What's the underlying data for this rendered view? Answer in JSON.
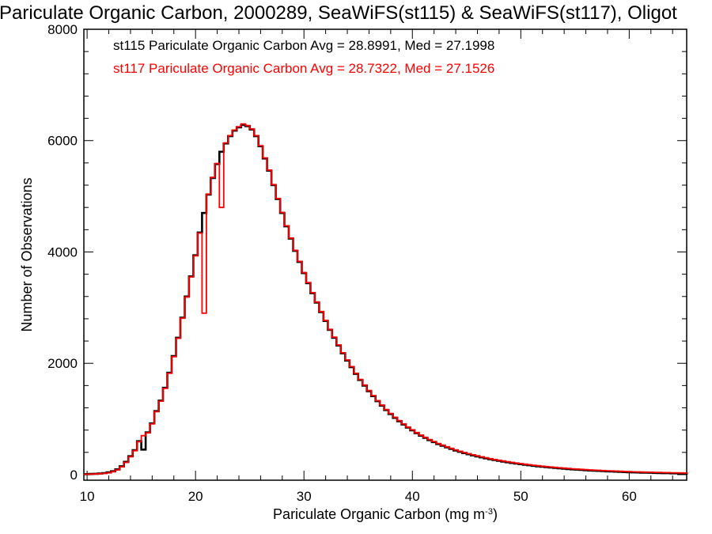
{
  "title": "Pariculate Organic Carbon, 2000289, SeaWiFS(st115) & SeaWiFS(st117), Oligot",
  "chart_data": {
    "type": "histogram",
    "xlabel": "Pariculate Organic Carbon (mg m",
    "xlabel_sup": "-3",
    "xlabel_close": ")",
    "ylabel": "Number of Observations",
    "xlim": [
      9.7,
      65.3
    ],
    "ylim": [
      -100,
      8000
    ],
    "xticks": [
      "10",
      "20",
      "30",
      "40",
      "50",
      "60"
    ],
    "yticks": [
      "0",
      "2000",
      "4000",
      "6000",
      "8000"
    ],
    "legend": [
      {
        "text": "st115 Pariculate Organic Carbon Avg = 28.8991, Med = 27.1998",
        "color": "#000000"
      },
      {
        "text": "st117 Pariculate Organic Carbon Avg = 28.7322, Med = 27.1526",
        "color": "#ff0000"
      }
    ],
    "bin_start": 9.8,
    "bin_width": 0.4,
    "series": [
      {
        "color": "#000000",
        "values": [
          10,
          12,
          15,
          20,
          28,
          40,
          60,
          95,
          150,
          230,
          330,
          440,
          600,
          450,
          760,
          920,
          1140,
          1330,
          1560,
          1830,
          2130,
          2460,
          2820,
          3200,
          3560,
          3940,
          4350,
          4700,
          5030,
          5330,
          5580,
          5800,
          5950,
          6080,
          6180,
          6240,
          6280,
          6260,
          6200,
          6080,
          5900,
          5680,
          5460,
          5200,
          4950,
          4700,
          4460,
          4240,
          4020,
          3820,
          3620,
          3440,
          3260,
          3090,
          2920,
          2760,
          2600,
          2460,
          2320,
          2180,
          2050,
          1930,
          1810,
          1700,
          1600,
          1500,
          1410,
          1320,
          1240,
          1160,
          1090,
          1020,
          960,
          900,
          845,
          795,
          745,
          700,
          660,
          620,
          585,
          550,
          520,
          490,
          462,
          435,
          410,
          388,
          366,
          346,
          327,
          310,
          293,
          277,
          262,
          248,
          235,
          222,
          210,
          199,
          188,
          178,
          168,
          159,
          150,
          142,
          134,
          127,
          120,
          113,
          107,
          101,
          95,
          90,
          85,
          80,
          75,
          71,
          67,
          63,
          59,
          56,
          53,
          50,
          47,
          44,
          41,
          39,
          37,
          35,
          33,
          31,
          29,
          27,
          26,
          24,
          23,
          21,
          20,
          19
        ]
      },
      {
        "color": "#ff0000",
        "values": [
          8,
          10,
          12,
          16,
          22,
          32,
          52,
          85,
          140,
          220,
          320,
          430,
          590,
          700,
          750,
          910,
          1130,
          1320,
          1550,
          1820,
          2120,
          2450,
          2810,
          3190,
          3550,
          3930,
          4340,
          2900,
          5040,
          5340,
          5590,
          4800,
          5960,
          6090,
          6190,
          6250,
          6300,
          6270,
          6210,
          6090,
          5910,
          5690,
          5470,
          5210,
          4960,
          4710,
          4470,
          4250,
          4030,
          3830,
          3630,
          3450,
          3270,
          3100,
          2930,
          2770,
          2610,
          2470,
          2330,
          2190,
          2060,
          1940,
          1820,
          1710,
          1610,
          1510,
          1420,
          1330,
          1250,
          1170,
          1100,
          1030,
          970,
          910,
          855,
          805,
          755,
          710,
          670,
          630,
          595,
          560,
          530,
          500,
          472,
          445,
          420,
          398,
          376,
          356,
          337,
          320,
          303,
          287,
          272,
          258,
          245,
          232,
          220,
          209,
          198,
          188,
          178,
          169,
          160,
          152,
          144,
          137,
          130,
          123,
          117,
          111,
          105,
          100,
          95,
          90,
          85,
          81,
          77,
          73,
          69,
          66,
          63,
          60,
          57,
          54,
          51,
          49,
          47,
          45,
          43,
          41,
          39,
          37,
          36,
          34,
          33,
          31,
          30,
          29
        ]
      }
    ]
  }
}
